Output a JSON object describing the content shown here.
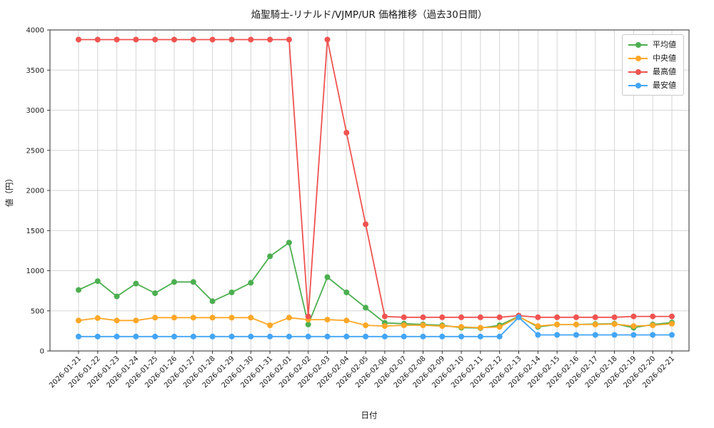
{
  "chart_data": {
    "type": "line",
    "title": "焔聖騎士-リナルド/VJMP/UR 価格推移（過去30日間）",
    "xlabel": "日付",
    "ylabel": "値（円）",
    "ylim": [
      0,
      4000
    ],
    "yticks": [
      0,
      500,
      1000,
      1500,
      2000,
      2500,
      3000,
      3500,
      4000
    ],
    "grid": true,
    "legend_position": "upper right",
    "x": [
      "2026-01-21",
      "2026-01-22",
      "2026-01-23",
      "2026-01-24",
      "2026-01-25",
      "2026-01-26",
      "2026-01-27",
      "2026-01-28",
      "2026-01-29",
      "2026-01-30",
      "2026-01-31",
      "2026-02-01",
      "2026-02-02",
      "2026-02-03",
      "2026-02-04",
      "2026-02-05",
      "2026-02-06",
      "2026-02-07",
      "2026-02-08",
      "2026-02-09",
      "2026-02-10",
      "2026-02-11",
      "2026-02-12",
      "2026-02-13",
      "2026-02-14",
      "2026-02-15",
      "2026-02-16",
      "2026-02-17",
      "2026-02-18",
      "2026-02-19",
      "2026-02-20",
      "2026-02-21"
    ],
    "series": [
      {
        "name": "平均値",
        "key": "average",
        "color": "#4caf50",
        "values": [
          760,
          870,
          680,
          840,
          720,
          860,
          860,
          620,
          730,
          850,
          1180,
          1350,
          330,
          920,
          730,
          540,
          350,
          340,
          330,
          320,
          290,
          285,
          320,
          430,
          300,
          330,
          330,
          335,
          340,
          290,
          330,
          355
        ]
      },
      {
        "name": "中央値",
        "key": "median",
        "color": "#ffa726",
        "values": [
          380,
          410,
          380,
          380,
          415,
          415,
          415,
          415,
          415,
          415,
          320,
          415,
          390,
          390,
          380,
          320,
          310,
          320,
          320,
          310,
          300,
          290,
          300,
          425,
          310,
          330,
          330,
          330,
          335,
          310,
          320,
          340
        ]
      },
      {
        "name": "最高値",
        "key": "highest",
        "color": "#ef5350",
        "values": [
          3880,
          3880,
          3880,
          3880,
          3880,
          3880,
          3880,
          3880,
          3880,
          3880,
          3880,
          3880,
          430,
          3880,
          2720,
          1580,
          430,
          420,
          420,
          420,
          420,
          420,
          420,
          440,
          420,
          420,
          420,
          420,
          420,
          430,
          430,
          430
        ]
      },
      {
        "name": "最安値",
        "key": "lowest",
        "color": "#42a5f5",
        "values": [
          180,
          180,
          180,
          180,
          180,
          180,
          180,
          180,
          180,
          180,
          180,
          180,
          180,
          180,
          180,
          180,
          180,
          180,
          180,
          180,
          180,
          180,
          180,
          420,
          200,
          200,
          200,
          200,
          200,
          200,
          200,
          200
        ]
      }
    ]
  }
}
